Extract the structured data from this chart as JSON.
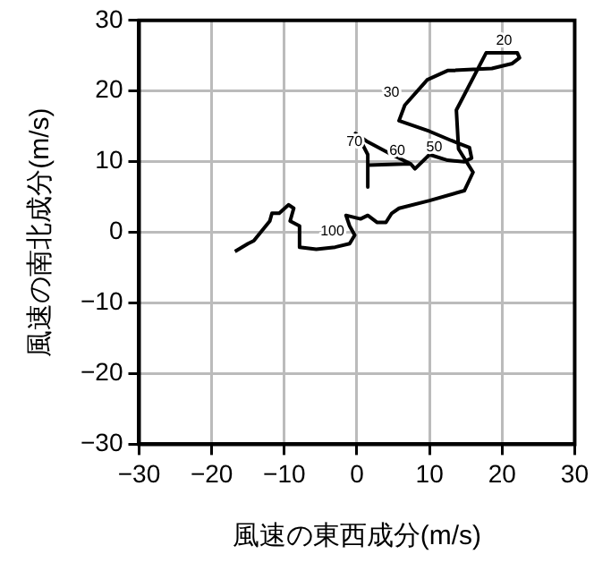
{
  "chart_data": {
    "type": "line",
    "xlabel": "風速の東西成分(m/s)",
    "ylabel": "風速の南北成分(m/s)",
    "xlim": [
      -30,
      30
    ],
    "ylim": [
      -30,
      30
    ],
    "xticks": [
      -30,
      -20,
      -10,
      0,
      10,
      20,
      30
    ],
    "yticks": [
      -30,
      -20,
      -10,
      0,
      10,
      20,
      30
    ],
    "grid": true,
    "legend": false,
    "marker": "none",
    "line_style": "solid",
    "series": [
      {
        "color": "#000000",
        "x": [
          -16.8,
          -15,
          -14.2,
          -12,
          -11.7,
          -10.7,
          -9.4,
          -8.7,
          -9.2,
          -7.9,
          -7.9,
          -5.6,
          -3,
          -1,
          -0.3,
          -1,
          -1.5,
          0.5,
          1.5,
          2.8,
          4,
          4.8,
          5.8,
          10,
          14.8,
          16,
          14,
          13.7,
          17.8,
          22.1,
          22.4,
          21.4,
          18.6,
          12.5,
          9.7,
          6.6,
          5.8,
          10,
          13,
          15.5,
          15.8,
          14.8,
          12.5,
          10,
          8,
          7.4,
          4.8,
          1.5,
          -0.2,
          0.5,
          1.5,
          1.5,
          1.5,
          7.4
        ],
        "values": [
          -2.7,
          -1.6,
          -1.2,
          1.6,
          2.7,
          2.7,
          3.9,
          3.4,
          1.6,
          0.9,
          -2.1,
          -2.4,
          -2.1,
          -1.6,
          -0.4,
          0.9,
          2.4,
          1.9,
          2.4,
          1.4,
          1.4,
          2.7,
          3.4,
          4.5,
          5.9,
          8.5,
          11.8,
          17.3,
          25.4,
          25.4,
          24.7,
          23.9,
          23.2,
          22.9,
          21.6,
          18,
          15.8,
          14.3,
          13,
          12,
          10.5,
          10,
          10.2,
          11,
          9,
          9.7,
          11,
          12.8,
          14,
          13,
          11,
          6.4,
          9.5,
          9.7
        ]
      }
    ],
    "annotations": [
      {
        "text": "20",
        "x": 22.1,
        "y": 25.4
      },
      {
        "text": "30",
        "x": 6.6,
        "y": 18
      },
      {
        "text": "50",
        "x": 12.5,
        "y": 10.2
      },
      {
        "text": "60",
        "x": 7.4,
        "y": 9.7
      },
      {
        "text": "70",
        "x": 1.5,
        "y": 11
      },
      {
        "text": "100",
        "x": -1,
        "y": -1.6
      }
    ]
  }
}
